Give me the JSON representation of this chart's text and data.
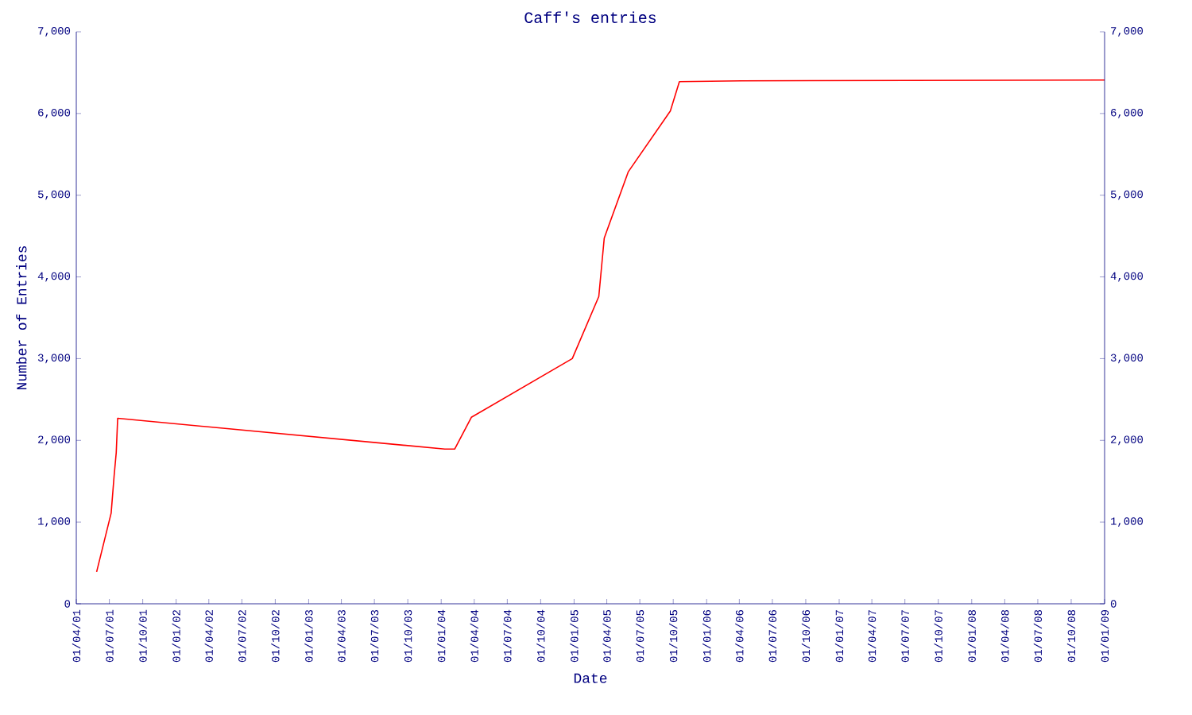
{
  "chart_data": {
    "type": "line",
    "title": "Caff's entries",
    "xlabel": "Date",
    "ylabel": "Number of Entries",
    "x": [
      "2001-05-27",
      "2001-07-06",
      "2001-07-14",
      "2001-07-20",
      "2001-07-24",
      "2004-01-11",
      "2004-02-07",
      "2004-03-24",
      "2004-12-27",
      "2005-03-10",
      "2005-03-25",
      "2005-05-30",
      "2005-09-23",
      "2005-10-18",
      "2006-04-07",
      "2009-01-01"
    ],
    "series": [
      {
        "color": "#ff0000",
        "values": [
          390,
          1110,
          1556,
          1850,
          2270,
          1893,
          1893,
          2282,
          3000,
          3760,
          4475,
          5285,
          6030,
          6390,
          6400,
          6410
        ]
      }
    ],
    "xlim": [
      "2001-04-01",
      "2009-01-01"
    ],
    "xticks": [
      {
        "value": "2001-04-01",
        "label": "01/04/01"
      },
      {
        "value": "2001-07-01",
        "label": "01/07/01"
      },
      {
        "value": "2001-10-01",
        "label": "01/10/01"
      },
      {
        "value": "2002-01-01",
        "label": "01/01/02"
      },
      {
        "value": "2002-04-01",
        "label": "01/04/02"
      },
      {
        "value": "2002-07-01",
        "label": "01/07/02"
      },
      {
        "value": "2002-10-01",
        "label": "01/10/02"
      },
      {
        "value": "2003-01-01",
        "label": "01/01/03"
      },
      {
        "value": "2003-04-01",
        "label": "01/04/03"
      },
      {
        "value": "2003-07-01",
        "label": "01/07/03"
      },
      {
        "value": "2003-10-01",
        "label": "01/10/03"
      },
      {
        "value": "2004-01-01",
        "label": "01/01/04"
      },
      {
        "value": "2004-04-01",
        "label": "01/04/04"
      },
      {
        "value": "2004-07-01",
        "label": "01/07/04"
      },
      {
        "value": "2004-10-01",
        "label": "01/10/04"
      },
      {
        "value": "2005-01-01",
        "label": "01/01/05"
      },
      {
        "value": "2005-04-01",
        "label": "01/04/05"
      },
      {
        "value": "2005-07-01",
        "label": "01/07/05"
      },
      {
        "value": "2005-10-01",
        "label": "01/10/05"
      },
      {
        "value": "2006-01-01",
        "label": "01/01/06"
      },
      {
        "value": "2006-04-01",
        "label": "01/04/06"
      },
      {
        "value": "2006-07-01",
        "label": "01/07/06"
      },
      {
        "value": "2006-10-01",
        "label": "01/10/06"
      },
      {
        "value": "2007-01-01",
        "label": "01/01/07"
      },
      {
        "value": "2007-04-01",
        "label": "01/04/07"
      },
      {
        "value": "2007-07-01",
        "label": "01/07/07"
      },
      {
        "value": "2007-10-01",
        "label": "01/10/07"
      },
      {
        "value": "2008-01-01",
        "label": "01/01/08"
      },
      {
        "value": "2008-04-01",
        "label": "01/04/08"
      },
      {
        "value": "2008-07-01",
        "label": "01/07/08"
      },
      {
        "value": "2008-10-01",
        "label": "01/10/08"
      },
      {
        "value": "2009-01-01",
        "label": "01/01/09"
      }
    ],
    "ylim": [
      0,
      7000
    ],
    "yticks": [
      0,
      {
        "value": 1000,
        "label": "1,000"
      },
      {
        "value": 2000,
        "label": "2,000"
      },
      {
        "value": 3000,
        "label": "3,000"
      },
      {
        "value": 4000,
        "label": "4,000"
      },
      {
        "value": 5000,
        "label": "5,000"
      },
      {
        "value": 6000,
        "label": "6,000"
      },
      {
        "value": 7000,
        "label": "7,000"
      }
    ],
    "y2lim": [
      0,
      7000
    ],
    "y2ticks": [
      0,
      {
        "value": 1000,
        "label": "1,000"
      },
      {
        "value": 2000,
        "label": "2,000"
      },
      {
        "value": 3000,
        "label": "3,000"
      },
      {
        "value": 4000,
        "label": "4,000"
      },
      {
        "value": 5000,
        "label": "5,000"
      },
      {
        "value": 6000,
        "label": "6,000"
      },
      {
        "value": 7000,
        "label": "7,000"
      }
    ]
  }
}
